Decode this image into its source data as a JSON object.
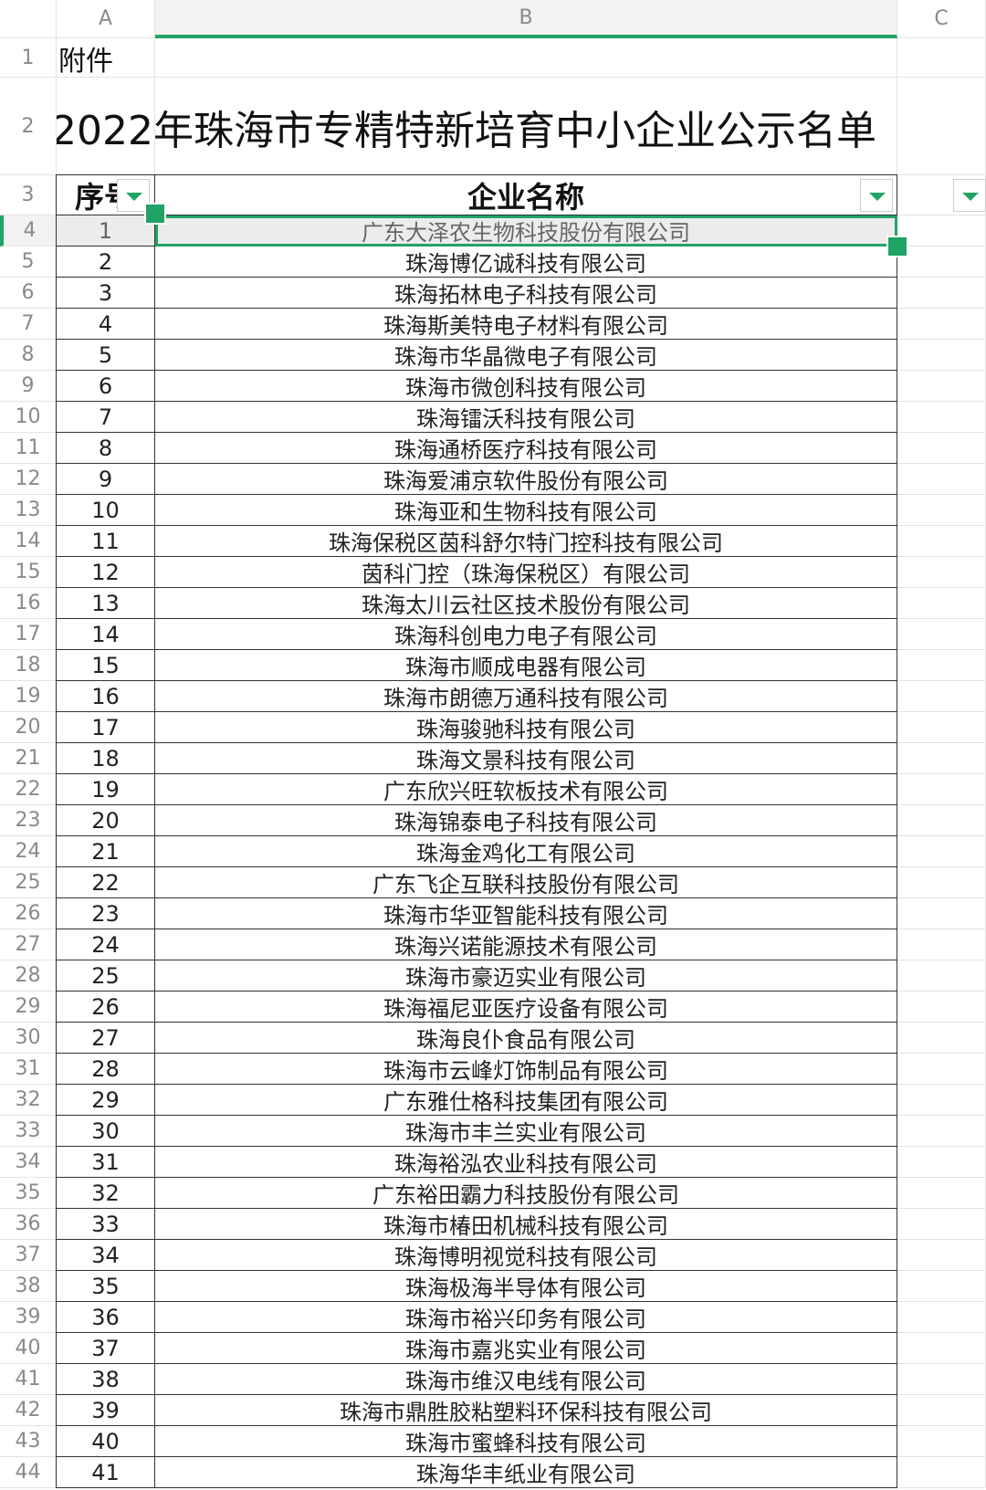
{
  "columns": [
    "A",
    "B",
    "C"
  ],
  "row_numbers": [
    1,
    2,
    3,
    4,
    5,
    6,
    7,
    8,
    9,
    10,
    11,
    12,
    13,
    14,
    15,
    16,
    17,
    18,
    19,
    20,
    21,
    22,
    23,
    24,
    25,
    26,
    27,
    28,
    29,
    30,
    31,
    32,
    33,
    34,
    35,
    36,
    37,
    38,
    39,
    40,
    41,
    42,
    43,
    44
  ],
  "cells": {
    "A1": "附件",
    "A2": "2022年珠海市专精特新培育中小企业公示名单"
  },
  "table": {
    "header": [
      "序号",
      "企业名称"
    ],
    "rows": [
      [
        1,
        "广东大泽农生物科技股份有限公司"
      ],
      [
        2,
        "珠海博亿诚科技有限公司"
      ],
      [
        3,
        "珠海拓林电子科技有限公司"
      ],
      [
        4,
        "珠海斯美特电子材料有限公司"
      ],
      [
        5,
        "珠海市华晶微电子有限公司"
      ],
      [
        6,
        "珠海市微创科技有限公司"
      ],
      [
        7,
        "珠海镭沃科技有限公司"
      ],
      [
        8,
        "珠海通桥医疗科技有限公司"
      ],
      [
        9,
        "珠海爱浦京软件股份有限公司"
      ],
      [
        10,
        "珠海亚和生物科技有限公司"
      ],
      [
        11,
        "珠海保税区茵科舒尔特门控科技有限公司"
      ],
      [
        12,
        "茵科门控（珠海保税区）有限公司"
      ],
      [
        13,
        "珠海太川云社区技术股份有限公司"
      ],
      [
        14,
        "珠海科创电力电子有限公司"
      ],
      [
        15,
        "珠海市顺成电器有限公司"
      ],
      [
        16,
        "珠海市朗德万通科技有限公司"
      ],
      [
        17,
        "珠海骏驰科技有限公司"
      ],
      [
        18,
        "珠海文景科技有限公司"
      ],
      [
        19,
        "广东欣兴旺软板技术有限公司"
      ],
      [
        20,
        "珠海锦泰电子科技有限公司"
      ],
      [
        21,
        "珠海金鸡化工有限公司"
      ],
      [
        22,
        "广东飞企互联科技股份有限公司"
      ],
      [
        23,
        "珠海市华亚智能科技有限公司"
      ],
      [
        24,
        "珠海兴诺能源技术有限公司"
      ],
      [
        25,
        "珠海市豪迈实业有限公司"
      ],
      [
        26,
        "珠海福尼亚医疗设备有限公司"
      ],
      [
        27,
        "珠海良仆食品有限公司"
      ],
      [
        28,
        "珠海市云峰灯饰制品有限公司"
      ],
      [
        29,
        "广东雅仕格科技集团有限公司"
      ],
      [
        30,
        "珠海市丰兰实业有限公司"
      ],
      [
        31,
        "珠海裕泓农业科技有限公司"
      ],
      [
        32,
        "广东裕田霸力科技股份有限公司"
      ],
      [
        33,
        "珠海市椿田机械科技有限公司"
      ],
      [
        34,
        "珠海博明视觉科技有限公司"
      ],
      [
        35,
        "珠海极海半导体有限公司"
      ],
      [
        36,
        "珠海市裕兴印务有限公司"
      ],
      [
        37,
        "珠海市嘉兆实业有限公司"
      ],
      [
        38,
        "珠海市维汉电线有限公司"
      ],
      [
        39,
        "珠海市鼎胜胶粘塑料环保科技有限公司"
      ],
      [
        40,
        "珠海市蜜蜂科技有限公司"
      ],
      [
        41,
        "珠海华丰纸业有限公司"
      ]
    ]
  }
}
